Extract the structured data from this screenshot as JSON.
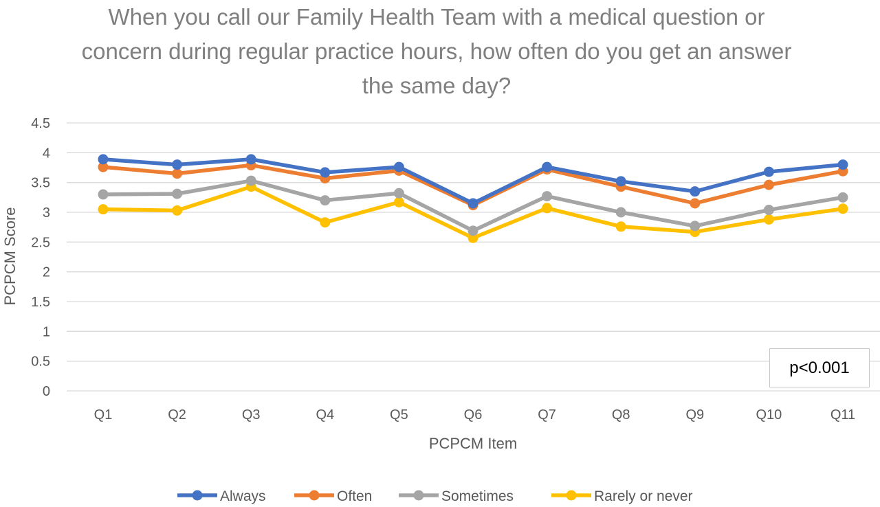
{
  "chart_data": {
    "type": "line",
    "title": "When you call our Family Health Team with a medical question or concern during regular practice hours, how often do you get an answer the same day?",
    "xlabel": "PCPCM Item",
    "ylabel": "PCPCM Score",
    "ylim": [
      0,
      4.5
    ],
    "yticks": [
      "0",
      "0.5",
      "1",
      "1.5",
      "2",
      "2.5",
      "3",
      "3.5",
      "4",
      "4.5"
    ],
    "grid": "horizontal",
    "legend_position": "bottom",
    "categories": [
      "Q1",
      "Q2",
      "Q3",
      "Q4",
      "Q5",
      "Q6",
      "Q7",
      "Q8",
      "Q9",
      "Q10",
      "Q11"
    ],
    "series": [
      {
        "name": "Always",
        "color": "#4472c4",
        "values": [
          3.89,
          3.8,
          3.89,
          3.67,
          3.76,
          3.15,
          3.76,
          3.52,
          3.35,
          3.68,
          3.8
        ]
      },
      {
        "name": "Often",
        "color": "#ed7d31",
        "values": [
          3.76,
          3.65,
          3.79,
          3.57,
          3.7,
          3.12,
          3.72,
          3.43,
          3.15,
          3.46,
          3.69
        ]
      },
      {
        "name": "Sometimes",
        "color": "#a5a5a5",
        "values": [
          3.3,
          3.31,
          3.53,
          3.2,
          3.32,
          2.69,
          3.27,
          3.0,
          2.77,
          3.04,
          3.25
        ]
      },
      {
        "name": "Rarely or never",
        "color": "#ffc000",
        "values": [
          3.05,
          3.03,
          3.43,
          2.83,
          3.17,
          2.57,
          3.07,
          2.76,
          2.67,
          2.88,
          3.06
        ]
      }
    ],
    "annotation": "p<0.001"
  }
}
